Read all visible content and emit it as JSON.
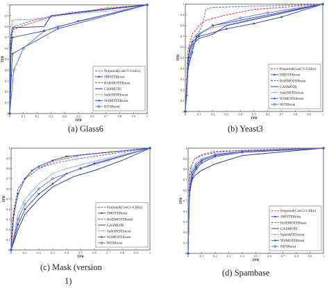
{
  "captions": [
    "(a)   Glass6",
    "(b)  Yeast3",
    "(c)     Mask  (version",
    "1)",
    "(d) Spambase"
  ],
  "chart_data": [
    {
      "type": "line",
      "panel": "a",
      "xlabel": "FPR",
      "ylabel": "TPR",
      "xlim": [
        0,
        1
      ],
      "ylim": [
        0,
        1
      ],
      "xticks": [
        "0",
        "0.1",
        "0.2",
        "0.3",
        "0.4",
        "0.5",
        "0.6",
        "0.7",
        "0.8",
        "0.9",
        "1"
      ],
      "yticks": [
        "0",
        "0.1",
        "0.2",
        "0.3",
        "0.4",
        "0.5",
        "0.6",
        "0.7",
        "0.8",
        "0.9",
        "1"
      ],
      "legend_position": "bottom-right",
      "series": [
        {
          "name": "Proposed(CoeCV-CSEn)",
          "color": "#d92020",
          "dash": "3,1.5",
          "marker": "none",
          "x": [
            0,
            0.01,
            0.02,
            0.1,
            0.2,
            0.3,
            0.5,
            0.7,
            1
          ],
          "y": [
            0,
            0.72,
            0.77,
            0.81,
            0.85,
            0.89,
            0.93,
            0.97,
            1
          ]
        },
        {
          "name": "SMOTEBoost",
          "color": "#2a40b0",
          "dash": "none",
          "marker": "dot",
          "x": [
            0,
            0.01,
            0.02,
            0.25,
            0.5,
            1
          ],
          "y": [
            0,
            0.6,
            0.7,
            0.76,
            0.85,
            1
          ]
        },
        {
          "name": "BrdSMOTEBoost",
          "color": "#4a5fc9",
          "dash": "3,1.5",
          "marker": "none",
          "x": [
            0,
            0.005,
            0.03,
            0.2,
            0.45,
            1
          ],
          "y": [
            0,
            0.66,
            0.8,
            0.87,
            0.93,
            1
          ]
        },
        {
          "name": "GASMOTE",
          "color": "#1a2a8a",
          "dash": "none",
          "marker": "none",
          "x": [
            0,
            0.01,
            0.02,
            0.25,
            0.3,
            1
          ],
          "y": [
            0,
            0.72,
            0.79,
            0.8,
            0.9,
            1
          ]
        },
        {
          "name": "SafeSMTEboost",
          "color": "#3a58c8",
          "dash": "1,1",
          "marker": "none",
          "x": [
            0,
            0.01,
            0.02,
            0.25,
            0.3,
            0.8,
            1
          ],
          "y": [
            0,
            0.65,
            0.86,
            0.87,
            0.9,
            0.95,
            1
          ]
        },
        {
          "name": "WSMOTEBoost",
          "color": "#2c44b4",
          "dash": "none",
          "marker": "star",
          "x": [
            0,
            0.005,
            0.012,
            0.02,
            0.35,
            1
          ],
          "y": [
            0,
            0.15,
            0.35,
            0.55,
            0.78,
            1
          ]
        },
        {
          "name": "RUSBoost",
          "color": "#5a6ecc",
          "dash": "none",
          "marker": "circle",
          "x": [
            0,
            0.03,
            0.1,
            0.25,
            0.35,
            1
          ],
          "y": [
            0,
            0.4,
            0.6,
            0.76,
            0.8,
            1
          ]
        }
      ]
    },
    {
      "type": "line",
      "panel": "b",
      "xlabel": "FPR",
      "ylabel": "TPR",
      "xlim": [
        0,
        1
      ],
      "ylim": [
        0,
        1
      ],
      "xticks": [
        "0",
        "0.1",
        "0.2",
        "0.3",
        "0.4",
        "0.5",
        "0.6",
        "0.7",
        "0.8",
        "0.9",
        "1"
      ],
      "yticks": [
        "0",
        "0.1",
        "0.2",
        "0.3",
        "0.4",
        "0.5",
        "0.6",
        "0.7",
        "0.8",
        "0.9",
        "1"
      ],
      "legend_position": "bottom-right",
      "series": [
        {
          "name": "Proposed(CoeCV-CSEn)",
          "color": "#d92020",
          "dash": "3,1.5",
          "marker": "none",
          "x": [
            0,
            0.02,
            0.05,
            0.1,
            0.15,
            0.3,
            0.5,
            1
          ],
          "y": [
            0,
            0.58,
            0.72,
            0.8,
            0.85,
            0.9,
            0.95,
            1
          ]
        },
        {
          "name": "SMOTEBoost",
          "color": "#2a40b0",
          "dash": "none",
          "marker": "dot",
          "x": [
            0,
            0.02,
            0.05,
            0.1,
            0.3,
            0.5,
            0.7,
            1
          ],
          "y": [
            0,
            0.5,
            0.65,
            0.7,
            0.77,
            0.82,
            0.88,
            1
          ]
        },
        {
          "name": "BrdSMOTEBoost",
          "color": "#4a5fc9",
          "dash": "3,1.5",
          "marker": "none",
          "x": [
            0,
            0.02,
            0.05,
            0.12,
            0.15,
            0.2,
            1
          ],
          "y": [
            0,
            0.4,
            0.6,
            0.8,
            0.95,
            0.97,
            1
          ]
        },
        {
          "name": "GASMOTE",
          "color": "#1a2a8a",
          "dash": "none",
          "marker": "none",
          "x": [
            0,
            0.03,
            0.1,
            0.2,
            0.3,
            1
          ],
          "y": [
            0,
            0.6,
            0.68,
            0.72,
            0.8,
            1
          ]
        },
        {
          "name": "SafeSMTEboost",
          "color": "#3a58c8",
          "dash": "1,1",
          "marker": "none",
          "x": [
            0,
            0.02,
            0.05,
            0.08,
            0.2,
            1
          ],
          "y": [
            0,
            0.5,
            0.66,
            0.72,
            0.78,
            1
          ]
        },
        {
          "name": "WSMOTEBoost",
          "color": "#2c44b4",
          "dash": "none",
          "marker": "star",
          "x": [
            0,
            0.01,
            0.02,
            0.05,
            0.08,
            0.2,
            1
          ],
          "y": [
            0,
            0.15,
            0.4,
            0.55,
            0.7,
            0.8,
            1
          ]
        },
        {
          "name": "RUSBoost",
          "color": "#5a6ecc",
          "dash": "none",
          "marker": "circle",
          "x": [
            0,
            0.02,
            0.05,
            0.1,
            0.2,
            0.4,
            0.6,
            1
          ],
          "y": [
            0,
            0.45,
            0.6,
            0.72,
            0.8,
            0.87,
            0.92,
            1
          ]
        }
      ]
    },
    {
      "type": "line",
      "panel": "c",
      "xlabel": "FPR",
      "ylabel": "TPR",
      "xlim": [
        0,
        1
      ],
      "ylim": [
        0,
        1
      ],
      "xticks": [
        "0",
        "0.1",
        "0.2",
        "0.3",
        "0.4",
        "0.5",
        "0.6",
        "0.7",
        "0.8",
        "0.9",
        "1"
      ],
      "yticks": [
        "0",
        "0.1",
        "0.2",
        "0.3",
        "0.4",
        "0.5",
        "0.6",
        "0.7",
        "0.8",
        "0.9",
        "1"
      ],
      "legend_position": "bottom-right",
      "series": [
        {
          "name": "Proposed(CoeCv-CSEn)",
          "color": "#d92020",
          "dash": "3,1.5",
          "marker": "none",
          "x": [
            0,
            0.01,
            0.05,
            0.1,
            0.2,
            0.3,
            0.5,
            1
          ],
          "y": [
            0,
            0.3,
            0.6,
            0.7,
            0.8,
            0.87,
            0.93,
            1
          ]
        },
        {
          "name": "SMOTEBoost",
          "color": "#2a40b0",
          "dash": "none",
          "marker": "dot",
          "x": [
            0,
            0.05,
            0.1,
            0.2,
            0.3,
            0.4,
            0.5,
            0.6,
            1
          ],
          "y": [
            0,
            0.25,
            0.4,
            0.55,
            0.65,
            0.75,
            0.8,
            0.85,
            1
          ]
        },
        {
          "name": "BrdSMOTEBoost",
          "color": "#4a5fc9",
          "dash": "3,1.5",
          "marker": "none",
          "x": [
            0,
            0.02,
            0.05,
            0.1,
            0.2,
            0.3,
            0.5,
            1
          ],
          "y": [
            0,
            0.4,
            0.6,
            0.7,
            0.8,
            0.85,
            0.9,
            1
          ]
        },
        {
          "name": "GASMOTE",
          "color": "#1a2a8a",
          "dash": "none",
          "marker": "none",
          "x": [
            0,
            0.05,
            0.1,
            0.2,
            0.3,
            0.45,
            0.6,
            0.8,
            1
          ],
          "y": [
            0,
            0.2,
            0.35,
            0.5,
            0.62,
            0.72,
            0.78,
            0.88,
            1
          ]
        },
        {
          "name": "SafeSMTEboost",
          "color": "#3a58c8",
          "dash": "1,1",
          "marker": "none",
          "x": [
            0,
            0.05,
            0.1,
            0.2,
            0.3,
            0.4,
            0.6,
            1
          ],
          "y": [
            0,
            0.35,
            0.5,
            0.65,
            0.75,
            0.8,
            0.87,
            1
          ]
        },
        {
          "name": "WSMOTEBoost",
          "color": "#2c44b4",
          "dash": "none",
          "marker": "star",
          "x": [
            0,
            0.02,
            0.05,
            0.1,
            0.15,
            0.2,
            0.3,
            0.4,
            1
          ],
          "y": [
            0,
            0.35,
            0.55,
            0.7,
            0.78,
            0.82,
            0.88,
            0.92,
            1
          ]
        },
        {
          "name": "RUSBoost",
          "color": "#5a6ecc",
          "dash": "none",
          "marker": "circle",
          "x": [
            0,
            0.05,
            0.1,
            0.2,
            0.3,
            0.5,
            0.7,
            1
          ],
          "y": [
            0,
            0.3,
            0.45,
            0.6,
            0.7,
            0.8,
            0.88,
            1
          ]
        }
      ]
    },
    {
      "type": "line",
      "panel": "d",
      "xlabel": "FPR",
      "ylabel": "TPR",
      "xlim": [
        0,
        1
      ],
      "ylim": [
        0,
        1
      ],
      "xticks": [
        "0",
        "0.1",
        "0.2",
        "0.3",
        "0.4",
        "0.5",
        "0.6",
        "0.7",
        "0.8",
        "0.9",
        "1"
      ],
      "yticks": [
        "0",
        "0.1",
        "0.2",
        "0.3",
        "0.4",
        "0.5",
        "0.6",
        "0.7",
        "0.8",
        "0.9",
        "1"
      ],
      "legend_position": "bottom-right",
      "series": [
        {
          "name": "Proposed(CoeCv-CSEn)",
          "color": "#d92020",
          "dash": "3,1.5",
          "marker": "none",
          "x": [
            0,
            0.01,
            0.03,
            0.05,
            0.1,
            0.2,
            0.4,
            1
          ],
          "y": [
            0,
            0.75,
            0.85,
            0.9,
            0.93,
            0.96,
            0.98,
            1
          ]
        },
        {
          "name": "SMOTEBoost",
          "color": "#2a40b0",
          "dash": "none",
          "marker": "dot",
          "x": [
            0,
            0.01,
            0.03,
            0.06,
            0.1,
            0.2,
            0.4,
            1
          ],
          "y": [
            0,
            0.6,
            0.75,
            0.82,
            0.88,
            0.93,
            0.97,
            1
          ]
        },
        {
          "name": "BrdSMOTEBoost",
          "color": "#4a5fc9",
          "dash": "3,1.5",
          "marker": "none",
          "x": [
            0,
            0.01,
            0.02,
            0.05,
            0.1,
            0.2,
            1
          ],
          "y": [
            0,
            0.7,
            0.82,
            0.9,
            0.94,
            0.97,
            1
          ]
        },
        {
          "name": "GASMOTE",
          "color": "#1a2a8a",
          "dash": "none",
          "marker": "none",
          "x": [
            0,
            0.01,
            0.03,
            0.05,
            0.1,
            0.15,
            0.2,
            0.25,
            0.4,
            1
          ],
          "y": [
            0,
            0.58,
            0.7,
            0.74,
            0.79,
            0.82,
            0.85,
            0.87,
            0.93,
            1
          ]
        },
        {
          "name": "SafeSMTEboost",
          "color": "#3a58c8",
          "dash": "1,1",
          "marker": "none",
          "x": [
            0,
            0.01,
            0.03,
            0.06,
            0.1,
            0.2,
            0.4,
            1
          ],
          "y": [
            0,
            0.65,
            0.8,
            0.86,
            0.9,
            0.94,
            0.97,
            1
          ]
        },
        {
          "name": "WSMOTEBoost",
          "color": "#2c44b4",
          "dash": "none",
          "marker": "star",
          "x": [
            0,
            0.01,
            0.03,
            0.06,
            0.1,
            0.2,
            0.4,
            1
          ],
          "y": [
            0,
            0.55,
            0.72,
            0.8,
            0.86,
            0.92,
            0.96,
            1
          ]
        },
        {
          "name": "RUSBoost",
          "color": "#5a6ecc",
          "dash": "none",
          "marker": "circle",
          "x": [
            0,
            0.01,
            0.03,
            0.06,
            0.1,
            0.2,
            0.4,
            1
          ],
          "y": [
            0,
            0.6,
            0.77,
            0.84,
            0.89,
            0.94,
            0.97,
            1
          ]
        }
      ]
    }
  ]
}
